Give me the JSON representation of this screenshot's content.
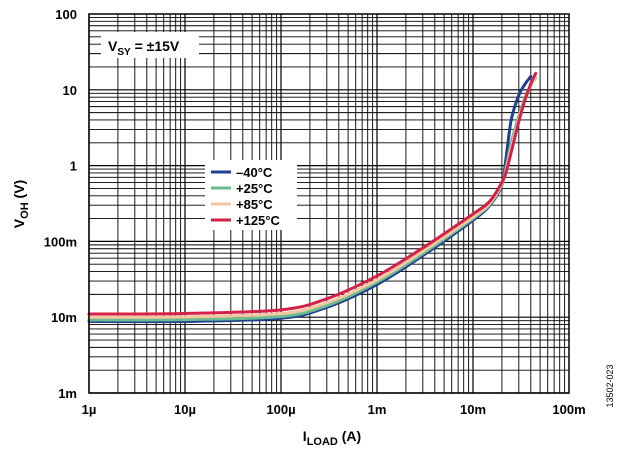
{
  "chart_data": {
    "type": "line",
    "x_scale": "log",
    "y_scale": "log",
    "xlim": [
      1e-06,
      0.1
    ],
    "ylim": [
      0.001,
      100
    ],
    "x_ticks": [
      {
        "value": 1e-06,
        "label": "1µ"
      },
      {
        "value": 1e-05,
        "label": "10µ"
      },
      {
        "value": 0.0001,
        "label": "100µ"
      },
      {
        "value": 0.001,
        "label": "1m"
      },
      {
        "value": 0.01,
        "label": "10m"
      },
      {
        "value": 0.1,
        "label": "100m"
      }
    ],
    "y_ticks": [
      {
        "value": 0.001,
        "label": "1m"
      },
      {
        "value": 0.01,
        "label": "10m"
      },
      {
        "value": 0.1,
        "label": "100m"
      },
      {
        "value": 1,
        "label": "1"
      },
      {
        "value": 10,
        "label": "10"
      },
      {
        "value": 100,
        "label": "100"
      }
    ],
    "xlabel_main": "I",
    "xlabel_sub": "LOAD",
    "xlabel_unit": " (A)",
    "ylabel_main": "V",
    "ylabel_sub": "OH",
    "ylabel_unit": " (V)",
    "grid": true,
    "legend_position": "center-left",
    "annotation_main": "V",
    "annotation_sub": "SY",
    "annotation_value": " = ±15V",
    "series": [
      {
        "name": "–40°C",
        "color": "#1f3f8f",
        "x": [
          1e-06,
          1e-05,
          0.0001,
          0.0003,
          0.001,
          0.003,
          0.01,
          0.015,
          0.02,
          0.022,
          0.025,
          0.03,
          0.035,
          0.04
        ],
        "y": [
          0.0088,
          0.0088,
          0.0097,
          0.0135,
          0.027,
          0.065,
          0.19,
          0.3,
          0.55,
          1.2,
          4.0,
          8.5,
          12.0,
          15.0
        ]
      },
      {
        "name": "+25°C",
        "color": "#6dbb91",
        "x": [
          1e-06,
          1e-05,
          0.0001,
          0.0003,
          0.001,
          0.003,
          0.01,
          0.015,
          0.02,
          0.022,
          0.025,
          0.03,
          0.035,
          0.04,
          0.045
        ],
        "y": [
          0.0092,
          0.0093,
          0.0102,
          0.0142,
          0.029,
          0.069,
          0.2,
          0.31,
          0.56,
          0.9,
          2.0,
          4.5,
          8.0,
          11.5,
          14.5
        ]
      },
      {
        "name": "+85°C",
        "color": "#f5c6a0",
        "x": [
          1e-06,
          1e-05,
          0.0001,
          0.0003,
          0.001,
          0.003,
          0.01,
          0.015,
          0.02,
          0.022,
          0.025,
          0.03,
          0.035,
          0.04,
          0.045
        ],
        "y": [
          0.01,
          0.0101,
          0.0112,
          0.0155,
          0.031,
          0.074,
          0.21,
          0.32,
          0.58,
          0.85,
          1.7,
          4.0,
          7.5,
          11.5,
          15.0
        ]
      },
      {
        "name": "+125°C",
        "color": "#d5204a",
        "x": [
          1e-06,
          1e-05,
          0.0001,
          0.0003,
          0.001,
          0.003,
          0.01,
          0.015,
          0.02,
          0.022,
          0.025,
          0.03,
          0.035,
          0.04,
          0.045
        ],
        "y": [
          0.011,
          0.0112,
          0.0125,
          0.0175,
          0.035,
          0.082,
          0.23,
          0.34,
          0.6,
          0.8,
          1.5,
          3.8,
          7.5,
          12.0,
          16.5
        ]
      }
    ]
  },
  "figure_id": "13502-023"
}
